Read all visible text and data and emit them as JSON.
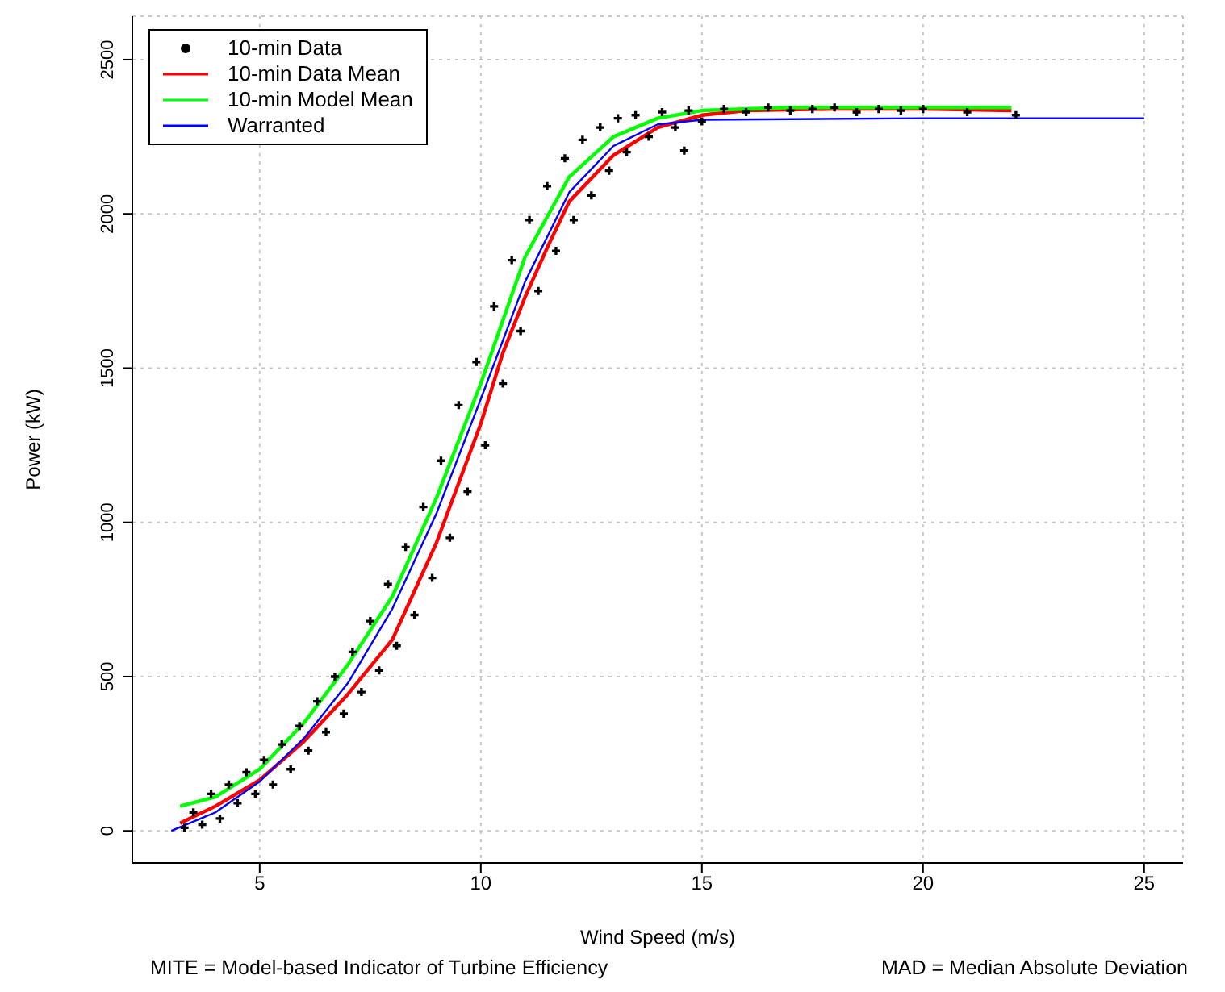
{
  "chart_data": {
    "type": "line",
    "xlabel": "Wind Speed (m/s)",
    "ylabel": "Power (kW)",
    "annotations": [
      "MITE = Model-based Indicator of Turbine Efficiency",
      "MAD = Median Absolute Deviation"
    ],
    "xlim": [
      2.12,
      25.88
    ],
    "xticks": [
      5,
      10,
      15,
      20,
      25
    ],
    "ylim": [
      -104,
      2641
    ],
    "yticks": [
      0,
      500,
      1000,
      1500,
      2000,
      2500
    ],
    "grid": true,
    "legend": "top left",
    "series": [
      {
        "name": "10-min Data",
        "type": "scatter",
        "marker": "cross",
        "color": "#000000",
        "x": [
          3.3,
          3.5,
          3.7,
          3.9,
          4.1,
          4.3,
          4.5,
          4.7,
          4.9,
          5.1,
          5.3,
          5.5,
          5.7,
          5.9,
          6.1,
          6.3,
          6.5,
          6.7,
          6.9,
          7.1,
          7.3,
          7.5,
          7.7,
          7.9,
          8.1,
          8.3,
          8.5,
          8.7,
          8.9,
          9.1,
          9.3,
          9.5,
          9.7,
          9.9,
          10.1,
          10.3,
          10.5,
          10.7,
          10.9,
          11.1,
          11.3,
          11.5,
          11.7,
          11.9,
          12.1,
          12.3,
          12.5,
          12.7,
          12.9,
          13.1,
          13.3,
          13.5,
          13.8,
          14.1,
          14.4,
          14.6,
          14.7,
          15.0,
          15.5,
          16,
          16.5,
          17,
          17.5,
          18,
          18.5,
          19,
          19.5,
          20,
          21,
          22.1
        ],
        "values": [
          10,
          60,
          20,
          120,
          40,
          150,
          90,
          190,
          120,
          230,
          150,
          280,
          200,
          340,
          260,
          420,
          320,
          500,
          380,
          580,
          450,
          680,
          520,
          800,
          600,
          920,
          700,
          1050,
          820,
          1200,
          950,
          1380,
          1100,
          1520,
          1250,
          1700,
          1450,
          1850,
          1620,
          1980,
          1750,
          2090,
          1880,
          2180,
          1980,
          2240,
          2060,
          2280,
          2140,
          2310,
          2200,
          2320,
          2250,
          2330,
          2280,
          2205,
          2335,
          2300,
          2340,
          2330,
          2345,
          2335,
          2340,
          2345,
          2330,
          2340,
          2335,
          2340,
          2330,
          2320
        ]
      },
      {
        "name": "10-min Data Mean",
        "color": "#ff0000",
        "x": [
          3.2,
          4,
          5,
          6,
          7,
          8,
          9,
          10,
          10.5,
          11,
          11.5,
          12,
          13,
          14,
          15,
          16,
          18,
          20,
          22
        ],
        "values": [
          25,
          80,
          165,
          290,
          444,
          620,
          935,
          1320,
          1550,
          1730,
          1890,
          2040,
          2190,
          2280,
          2320,
          2335,
          2340,
          2340,
          2335
        ]
      },
      {
        "name": "10-min Model Mean",
        "color": "#00ff00",
        "x": [
          3.2,
          4,
          5,
          6,
          7,
          8,
          9,
          10,
          11,
          12,
          13,
          14,
          15,
          17,
          20,
          22
        ],
        "values": [
          80,
          110,
          200,
          350,
          540,
          760,
          1080,
          1450,
          1860,
          2120,
          2250,
          2310,
          2335,
          2345,
          2345,
          2345
        ]
      },
      {
        "name": "Warranted",
        "color": "#0000ff",
        "x": [
          3,
          4,
          5,
          6,
          7,
          8,
          9,
          10,
          11,
          12,
          13,
          14,
          15,
          20,
          25
        ],
        "values": [
          0,
          60,
          160,
          300,
          480,
          720,
          1030,
          1400,
          1780,
          2070,
          2220,
          2290,
          2305,
          2310,
          2310
        ]
      }
    ]
  }
}
